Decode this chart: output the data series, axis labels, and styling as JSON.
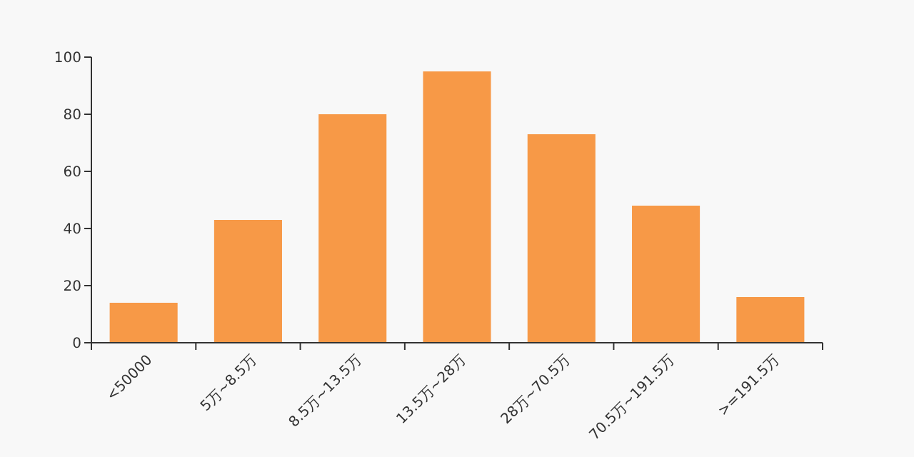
{
  "chart_data": {
    "type": "bar",
    "categories": [
      "<50000",
      "5万~8.5万",
      "8.5万~13.5万",
      "13.5万~28万",
      "28万~70.5万",
      "70.5万~191.5万",
      ">=191.5万"
    ],
    "values": [
      14,
      43,
      80,
      95,
      73,
      48,
      16
    ],
    "color": "#f79947",
    "ylim": [
      0,
      100
    ],
    "yticks": [
      0,
      20,
      40,
      60,
      80,
      100
    ],
    "grid": false
  }
}
